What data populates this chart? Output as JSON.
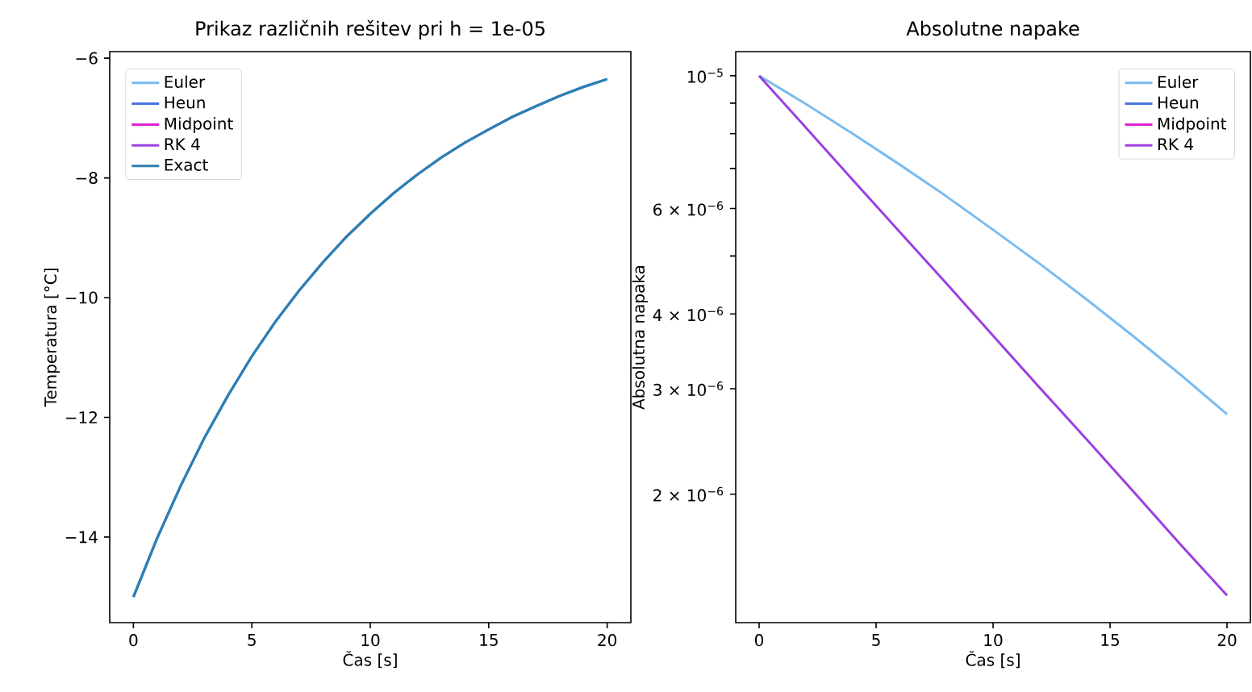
{
  "chart_data": [
    {
      "type": "line",
      "title": "Prikaz različnih rešitev pri h = 1e-05",
      "xlabel": "Čas [s]",
      "ylabel": "Temperatura [°C]",
      "x": [
        0,
        1,
        2,
        3,
        4,
        5,
        6,
        7,
        8,
        9,
        10,
        11,
        12,
        13,
        14,
        15,
        16,
        17,
        18,
        19,
        20
      ],
      "xlim": [
        -1,
        21
      ],
      "ylim": [
        -15.43,
        -5.89
      ],
      "xticks": [
        0,
        5,
        10,
        15,
        20
      ],
      "yticks": [
        {
          "value": -14,
          "label": "−14"
        },
        {
          "value": -12,
          "label": "−12"
        },
        {
          "value": -10,
          "label": "−10"
        },
        {
          "value": -8,
          "label": "−8"
        },
        {
          "value": -6,
          "label": "−6"
        }
      ],
      "legend": "top left",
      "series": [
        {
          "name": "Euler",
          "color": "#7abcf0",
          "values": [
            -15.0,
            -14.02,
            -13.14,
            -12.34,
            -11.63,
            -10.98,
            -10.4,
            -9.88,
            -9.41,
            -8.98,
            -8.6,
            -8.25,
            -7.94,
            -7.66,
            -7.41,
            -7.19,
            -6.98,
            -6.8,
            -6.63,
            -6.48,
            -6.35
          ]
        },
        {
          "name": "Heun",
          "color": "#4a74e0",
          "values": [
            -15.0,
            -14.02,
            -13.14,
            -12.34,
            -11.63,
            -10.98,
            -10.4,
            -9.88,
            -9.41,
            -8.98,
            -8.6,
            -8.25,
            -7.94,
            -7.66,
            -7.41,
            -7.19,
            -6.98,
            -6.8,
            -6.63,
            -6.48,
            -6.35
          ]
        },
        {
          "name": "Midpoint",
          "color": "#e020d0",
          "values": [
            null,
            null,
            null,
            null,
            null,
            null,
            null,
            null,
            null,
            null,
            null,
            null,
            null,
            null,
            null,
            null,
            null,
            null,
            null,
            null,
            null
          ]
        },
        {
          "name": "RK 4",
          "color": "#9b40e0",
          "values": [
            null,
            null,
            null,
            null,
            null,
            null,
            null,
            null,
            null,
            null,
            null,
            null,
            null,
            null,
            null,
            null,
            null,
            null,
            null,
            null,
            null
          ]
        },
        {
          "name": "Exact",
          "color": "#2e7fb0",
          "values": [
            -15.0,
            -14.02,
            -13.14,
            -12.34,
            -11.63,
            -10.98,
            -10.4,
            -9.88,
            -9.41,
            -8.98,
            -8.6,
            -8.25,
            -7.94,
            -7.66,
            -7.41,
            -7.19,
            -6.98,
            -6.8,
            -6.63,
            -6.48,
            -6.35
          ]
        }
      ]
    },
    {
      "type": "line",
      "title": "Absolutne napake",
      "xlabel": "Čas [s]",
      "ylabel": "Absolutna napaka",
      "log": "y",
      "x": [
        0,
        2,
        4,
        6,
        8,
        10,
        12,
        14,
        16,
        18,
        20
      ],
      "xlim": [
        -1,
        21
      ],
      "ylim": [
        1.22e-06,
        1.097e-05
      ],
      "xticks": [
        0,
        5,
        10,
        15,
        20
      ],
      "yticks": [
        {
          "value": 2e-06,
          "label": "2 × 10$^{−6}$"
        },
        {
          "value": 3e-06,
          "label": "3 × 10$^{−6}$"
        },
        {
          "value": 4e-06,
          "label": "4 × 10$^{−6}$"
        },
        {
          "value": 5e-06,
          "label": null
        },
        {
          "value": 6e-06,
          "label": "6 × 10$^{−6}$"
        },
        {
          "value": 7e-06,
          "label": null
        },
        {
          "value": 8e-06,
          "label": null
        },
        {
          "value": 9e-06,
          "label": null
        },
        {
          "value": 1e-05,
          "label": "10$^{−5}$"
        }
      ],
      "legend": "top right",
      "series": [
        {
          "name": "Euler",
          "color": "#7abcf0",
          "values": [
            1e-05,
            8.97e-06,
            8e-06,
            7.11e-06,
            6.29e-06,
            5.53e-06,
            4.85e-06,
            4.23e-06,
            3.67e-06,
            3.17e-06,
            2.72e-06
          ]
        },
        {
          "name": "Heun",
          "color": "#4a74e0",
          "values": [
            null,
            null,
            null,
            null,
            null,
            null,
            null,
            null,
            null,
            null,
            null
          ]
        },
        {
          "name": "Midpoint",
          "color": "#e020d0",
          "values": [
            null,
            null,
            null,
            null,
            null,
            null,
            null,
            null,
            null,
            null,
            null
          ]
        },
        {
          "name": "RK 4",
          "color": "#9b40e0",
          "values": [
            1e-05,
            8.19e-06,
            6.7e-06,
            5.49e-06,
            4.5e-06,
            3.68e-06,
            3.01e-06,
            2.47e-06,
            2.02e-06,
            1.65e-06,
            1.355e-06
          ]
        }
      ]
    }
  ]
}
